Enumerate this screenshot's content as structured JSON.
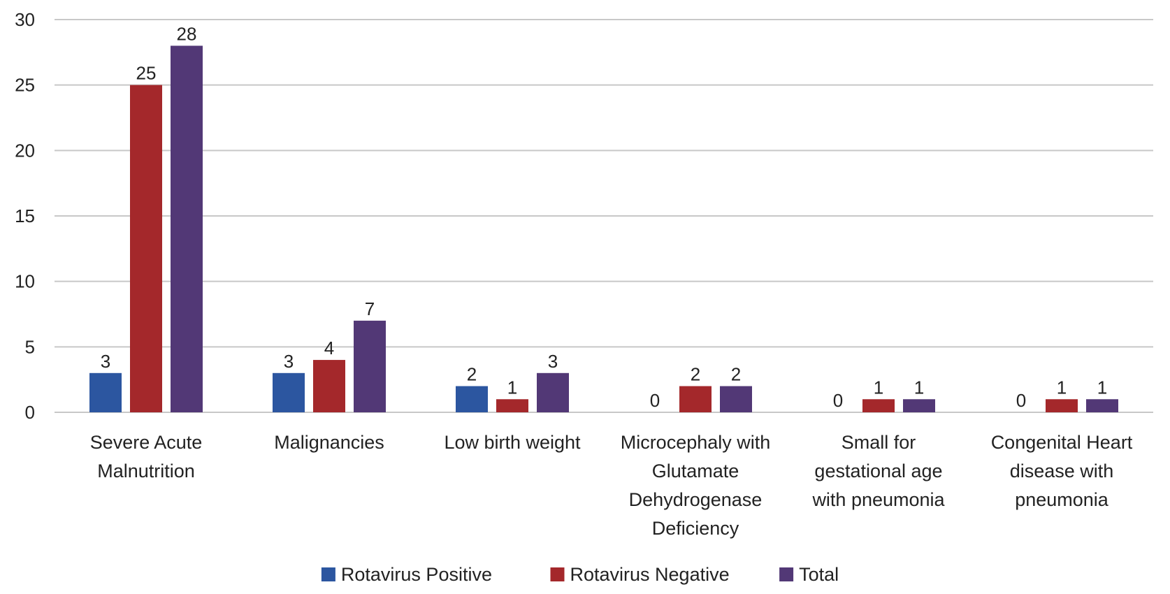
{
  "chart_data": {
    "type": "bar",
    "categories": [
      [
        "Severe Acute",
        "Malnutrition"
      ],
      [
        "Malignancies"
      ],
      [
        "Low birth weight"
      ],
      [
        "Microcephaly with",
        "Glutamate",
        "Dehydrogenase",
        "Deficiency"
      ],
      [
        "Small for",
        "gestational age",
        "with pneumonia"
      ],
      [
        "Congenital Heart",
        "disease with",
        "pneumonia"
      ]
    ],
    "series": [
      {
        "name": "Rotavirus Positive",
        "color": "#2c56a0",
        "values": [
          3,
          3,
          2,
          0,
          0,
          0
        ]
      },
      {
        "name": "Rotavirus Negative",
        "color": "#a4282b",
        "values": [
          25,
          4,
          1,
          2,
          1,
          1
        ]
      },
      {
        "name": "Total",
        "color": "#523876",
        "values": [
          28,
          7,
          3,
          2,
          1,
          1
        ]
      }
    ],
    "title": "",
    "xlabel": "",
    "ylabel": "",
    "ylim": [
      0,
      30
    ],
    "yticks": [
      0,
      5,
      10,
      15,
      20,
      25,
      30
    ],
    "grid": true,
    "legend": "bottom"
  }
}
